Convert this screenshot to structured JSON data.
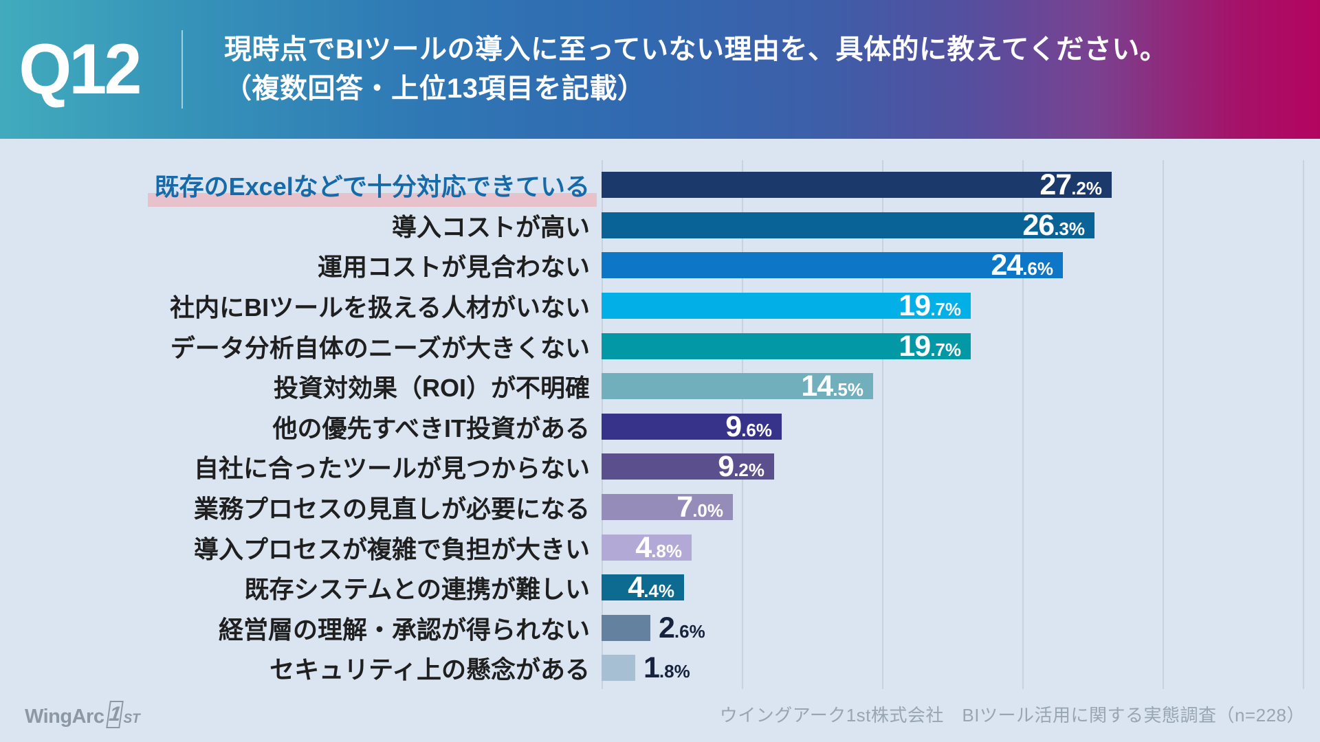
{
  "header": {
    "question_number": "Q12",
    "question_line1": "現時点でBIツールの導入に至っていない理由を、具体的に教えてください。",
    "question_line2": "（複数回答・上位13項目を記載）"
  },
  "chart_data": {
    "type": "bar",
    "orientation": "horizontal",
    "categories": [
      "既存のExcelなどで十分対応できている",
      "導入コストが高い",
      "運用コストが見合わない",
      "社内にBIツールを扱える人材がいない",
      "データ分析自体のニーズが大きくない",
      "投資対効果（ROI）が不明確",
      "他の優先すべきIT投資がある",
      "自社に合ったツールが見つからない",
      "業務プロセスの見直しが必要になる",
      "導入プロセスが複雑で負担が大きい",
      "既存システムとの連携が難しい",
      "経営層の理解・承認が得られない",
      "セキュリティ上の懸念がある"
    ],
    "values": [
      27.2,
      26.3,
      24.6,
      19.7,
      19.7,
      14.5,
      9.6,
      9.2,
      7.0,
      4.8,
      4.4,
      2.6,
      1.8
    ],
    "unit": "%",
    "bar_colors": [
      "#1B3A6B",
      "#0A6396",
      "#0E76C7",
      "#02AFE6",
      "#0398A6",
      "#72AFBD",
      "#38338A",
      "#5B4F8E",
      "#958CB9",
      "#B3A9D6",
      "#0D6A90",
      "#64829F",
      "#A7BFD3"
    ],
    "xlim": [
      0,
      37.4
    ],
    "gridline_count": 6,
    "grid_on": true,
    "highlight_index": 0,
    "highlight_text_color": "#176AA8",
    "highlight_band_color": "#E8C2CA",
    "value_label_inside_color": "#FFFFFF",
    "value_label_outside_color": "#16233C",
    "title": "",
    "xlabel": "",
    "ylabel": ""
  },
  "footer": {
    "logo_wing": "WingArc",
    "logo_one": "1",
    "logo_st": "ST",
    "source": "ウイングアーク1st株式会社　BIツール活用に関する実態調査（n=228）"
  },
  "colors": {
    "background": "#DAE5F1",
    "gridline": "#C7D2DF",
    "category_text": "#1F1F1F"
  }
}
